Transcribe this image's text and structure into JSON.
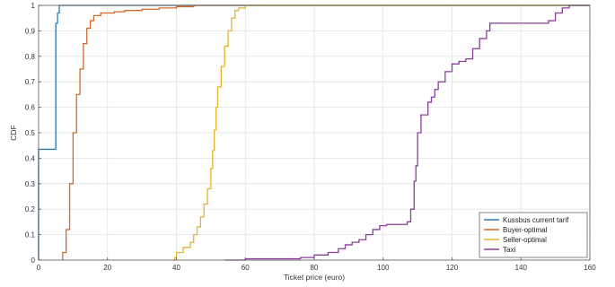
{
  "chart_data": {
    "type": "line",
    "step": true,
    "title": "",
    "xlabel": "Ticket price (euro)",
    "ylabel": "CDF",
    "xlim": [
      0,
      160
    ],
    "ylim": [
      0,
      1
    ],
    "xticks": [
      0,
      20,
      40,
      60,
      80,
      100,
      120,
      140,
      160
    ],
    "yticks": [
      0,
      0.1,
      0.2,
      0.3,
      0.4,
      0.5,
      0.6,
      0.7,
      0.8,
      0.9,
      1
    ],
    "grid": true,
    "legend_position": "bottom-right",
    "series": [
      {
        "name": "Kussbus current tarif",
        "color": "#2a7bb6",
        "points": [
          [
            0,
            0
          ],
          [
            0,
            0.435
          ],
          [
            5,
            0.435
          ],
          [
            5,
            0.93
          ],
          [
            5.5,
            0.93
          ],
          [
            5.5,
            0.97
          ],
          [
            6,
            0.97
          ],
          [
            6,
            1
          ],
          [
            160,
            1
          ]
        ]
      },
      {
        "name": "Buyer-optimal",
        "color": "#d26a2c",
        "points": [
          [
            7,
            0
          ],
          [
            7,
            0.03
          ],
          [
            8,
            0.12
          ],
          [
            9,
            0.3
          ],
          [
            10,
            0.5
          ],
          [
            11,
            0.65
          ],
          [
            12,
            0.75
          ],
          [
            13,
            0.85
          ],
          [
            14,
            0.91
          ],
          [
            15,
            0.94
          ],
          [
            16,
            0.96
          ],
          [
            18,
            0.97
          ],
          [
            20,
            0.97
          ],
          [
            22,
            0.975
          ],
          [
            25,
            0.98
          ],
          [
            30,
            0.985
          ],
          [
            35,
            0.99
          ],
          [
            40,
            0.995
          ],
          [
            45,
            1
          ],
          [
            160,
            1
          ]
        ]
      },
      {
        "name": "Seller-optimal",
        "color": "#e8b233",
        "points": [
          [
            39,
            0
          ],
          [
            39.5,
            0.01
          ],
          [
            40,
            0.03
          ],
          [
            42,
            0.05
          ],
          [
            44,
            0.07
          ],
          [
            45,
            0.1
          ],
          [
            46,
            0.13
          ],
          [
            47,
            0.17
          ],
          [
            48,
            0.22
          ],
          [
            49,
            0.28
          ],
          [
            50,
            0.36
          ],
          [
            50.5,
            0.43
          ],
          [
            51,
            0.51
          ],
          [
            51.5,
            0.6
          ],
          [
            52,
            0.68
          ],
          [
            53,
            0.76
          ],
          [
            54,
            0.84
          ],
          [
            55,
            0.9
          ],
          [
            56,
            0.95
          ],
          [
            57,
            0.98
          ],
          [
            58,
            0.99
          ],
          [
            60,
            1
          ],
          [
            160,
            1
          ]
        ]
      },
      {
        "name": "Taxi",
        "color": "#8a3f9c",
        "points": [
          [
            54,
            0
          ],
          [
            60,
            0.005
          ],
          [
            70,
            0.005
          ],
          [
            76,
            0.01
          ],
          [
            80,
            0.02
          ],
          [
            84,
            0.03
          ],
          [
            87,
            0.045
          ],
          [
            89,
            0.06
          ],
          [
            91,
            0.07
          ],
          [
            93,
            0.08
          ],
          [
            95,
            0.1
          ],
          [
            97,
            0.12
          ],
          [
            99,
            0.135
          ],
          [
            101,
            0.14
          ],
          [
            104,
            0.14
          ],
          [
            107,
            0.15
          ],
          [
            108,
            0.2
          ],
          [
            109,
            0.31
          ],
          [
            109.5,
            0.37
          ],
          [
            110,
            0.5
          ],
          [
            111,
            0.57
          ],
          [
            113,
            0.62
          ],
          [
            114,
            0.64
          ],
          [
            115,
            0.67
          ],
          [
            116,
            0.7
          ],
          [
            118,
            0.74
          ],
          [
            120,
            0.77
          ],
          [
            122,
            0.78
          ],
          [
            124,
            0.79
          ],
          [
            126,
            0.83
          ],
          [
            128,
            0.87
          ],
          [
            130,
            0.9
          ],
          [
            131,
            0.93
          ],
          [
            133,
            0.93
          ],
          [
            135,
            0.93
          ],
          [
            140,
            0.93
          ],
          [
            145,
            0.93
          ],
          [
            148,
            0.94
          ],
          [
            150,
            0.97
          ],
          [
            152,
            0.99
          ],
          [
            154,
            1
          ],
          [
            160,
            1
          ]
        ]
      }
    ]
  }
}
